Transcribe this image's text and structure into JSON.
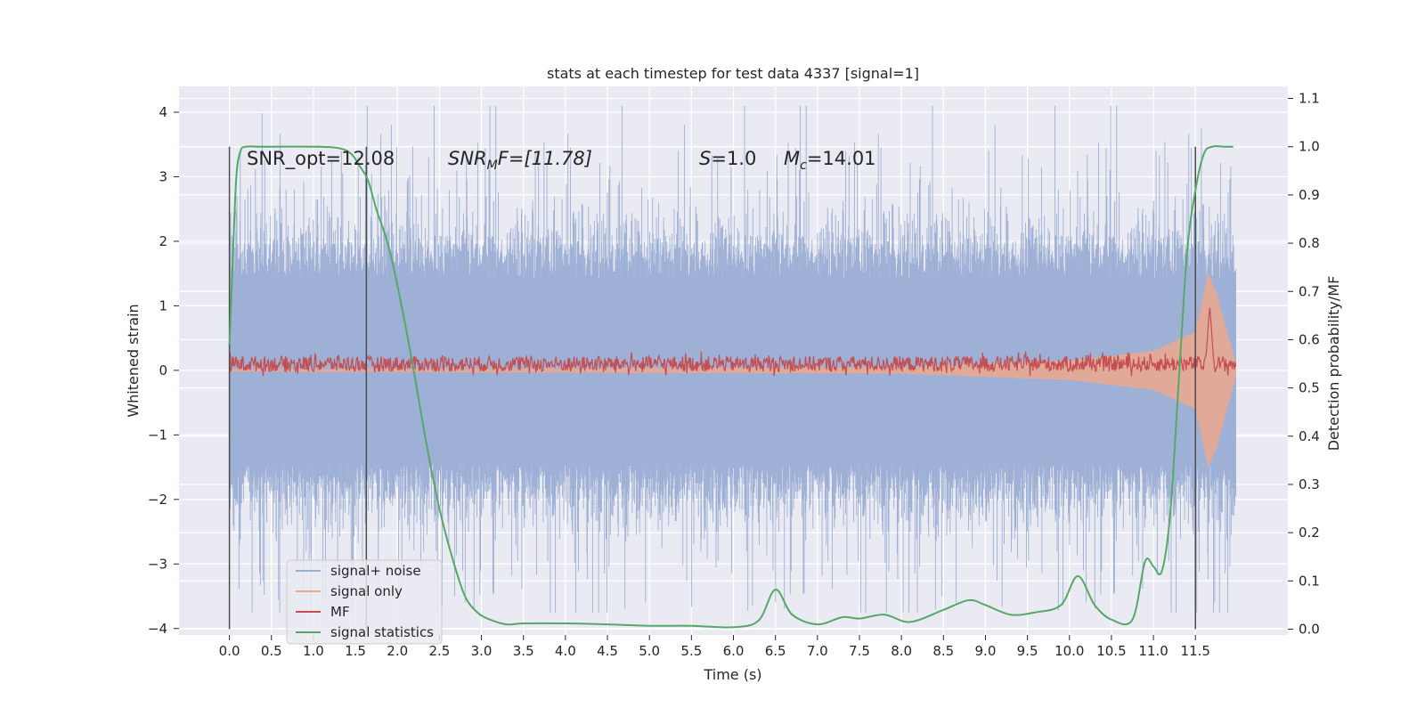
{
  "chart_data": {
    "type": "line",
    "title": "stats at each timestep for test data 4337 [signal=1]",
    "xlabel": "Time (s)",
    "ylabel": "Whitened strain",
    "y2label": "Detection probability/MF",
    "xlim": [
      -0.6,
      12.6
    ],
    "ylim": [
      -4.1,
      4.4
    ],
    "y2lim": [
      -0.012,
      1.125
    ],
    "xticks": [
      0.0,
      0.5,
      1.0,
      1.5,
      2.0,
      2.5,
      3.0,
      3.5,
      4.0,
      4.5,
      5.0,
      5.5,
      6.0,
      6.5,
      7.0,
      7.5,
      8.0,
      8.5,
      9.0,
      9.5,
      10.0,
      10.5,
      11.0,
      11.5
    ],
    "xtick_labels": [
      "0.0",
      "0.5",
      "1.0",
      "1.5",
      "2.0",
      "2.5",
      "3.0",
      "3.5",
      "4.0",
      "4.5",
      "5.0",
      "5.5",
      "6.0",
      "6.5",
      "7.0",
      "7.5",
      "8.0",
      "8.5",
      "9.0",
      "9.5",
      "10.0",
      "10.5",
      "11.0",
      "11.5"
    ],
    "yticks": [
      4,
      3,
      2,
      1,
      0,
      -1,
      -2,
      -3,
      -4
    ],
    "ytick_labels": [
      "4",
      "3",
      "2",
      "1",
      "0",
      "−1",
      "−2",
      "−3",
      "−4"
    ],
    "y2ticks": [
      1.1,
      1.0,
      0.9,
      0.8,
      0.7,
      0.6,
      0.5,
      0.4,
      0.3,
      0.2,
      0.1,
      0.0
    ],
    "y2tick_labels": [
      "1.1",
      "1.0",
      "0.9",
      "0.8",
      "0.7",
      "0.6",
      "0.5",
      "0.4",
      "0.3",
      "0.2",
      "0.1",
      "0.0"
    ],
    "grid": true,
    "legend_position": "lower-left",
    "annotations": {
      "snr_opt": "SNR_opt=12.08",
      "snr_mf_sym": "SNR",
      "snr_mf_sub": "M",
      "snr_mf_rest": "F=[11.78]",
      "s_sym": "S",
      "s_rest": "=1.0",
      "mc_sym": "M",
      "mc_sub": "c",
      "mc_rest": "=14.01"
    },
    "vertical_markers_x": [
      0.0,
      1.63,
      11.5
    ],
    "series": [
      {
        "name": "signal+ noise",
        "color": "#9aadd3",
        "axis": "left",
        "x_range": [
          0.0,
          11.98
        ],
        "typical_envelope": [
          -1.5,
          1.5
        ],
        "extremes": [
          -3.75,
          4.1
        ]
      },
      {
        "name": "signal only",
        "color": "#e8a991",
        "axis": "left",
        "x_range": [
          0.0,
          11.98
        ],
        "envelope_x": [
          0.0,
          8.0,
          10.0,
          11.0,
          11.5,
          11.65,
          11.75,
          11.98
        ],
        "envelope_amp": [
          0.02,
          0.05,
          0.15,
          0.3,
          0.6,
          1.5,
          1.2,
          0.1
        ]
      },
      {
        "name": "MF",
        "color": "#c44e52",
        "axis": "left",
        "x_range": [
          0.0,
          11.98
        ],
        "baseline": 0.1,
        "noise_band": [
          -0.05,
          0.25
        ],
        "peak": {
          "x": 11.67,
          "y": 1.0
        }
      },
      {
        "name": "signal statistics",
        "color": "#55a868",
        "axis": "right",
        "x": [
          0.0,
          0.03,
          0.08,
          0.13,
          0.2,
          0.35,
          0.5,
          1.0,
          1.3,
          1.45,
          1.55,
          1.65,
          1.75,
          1.9,
          2.05,
          2.2,
          2.35,
          2.5,
          2.65,
          2.8,
          2.95,
          3.1,
          3.3,
          3.5,
          4.0,
          4.5,
          5.0,
          5.5,
          6.0,
          6.3,
          6.5,
          6.7,
          7.0,
          7.3,
          7.5,
          7.8,
          8.1,
          8.5,
          8.8,
          9.0,
          9.3,
          9.6,
          9.9,
          10.1,
          10.3,
          10.5,
          10.75,
          10.9,
          11.0,
          11.1,
          11.2,
          11.3,
          11.4,
          11.5,
          11.6,
          11.7,
          11.85,
          11.95
        ],
        "y": [
          0.59,
          0.72,
          0.93,
          0.99,
          1.0,
          1.0,
          1.0,
          1.0,
          0.997,
          0.985,
          0.96,
          0.93,
          0.87,
          0.79,
          0.67,
          0.53,
          0.38,
          0.25,
          0.15,
          0.07,
          0.035,
          0.02,
          0.01,
          0.012,
          0.012,
          0.01,
          0.007,
          0.007,
          0.004,
          0.018,
          0.082,
          0.03,
          0.01,
          0.025,
          0.022,
          0.03,
          0.015,
          0.04,
          0.06,
          0.05,
          0.03,
          0.035,
          0.05,
          0.11,
          0.05,
          0.02,
          0.02,
          0.14,
          0.13,
          0.12,
          0.24,
          0.51,
          0.78,
          0.91,
          0.985,
          1.0,
          1.0,
          1.0
        ]
      }
    ]
  }
}
